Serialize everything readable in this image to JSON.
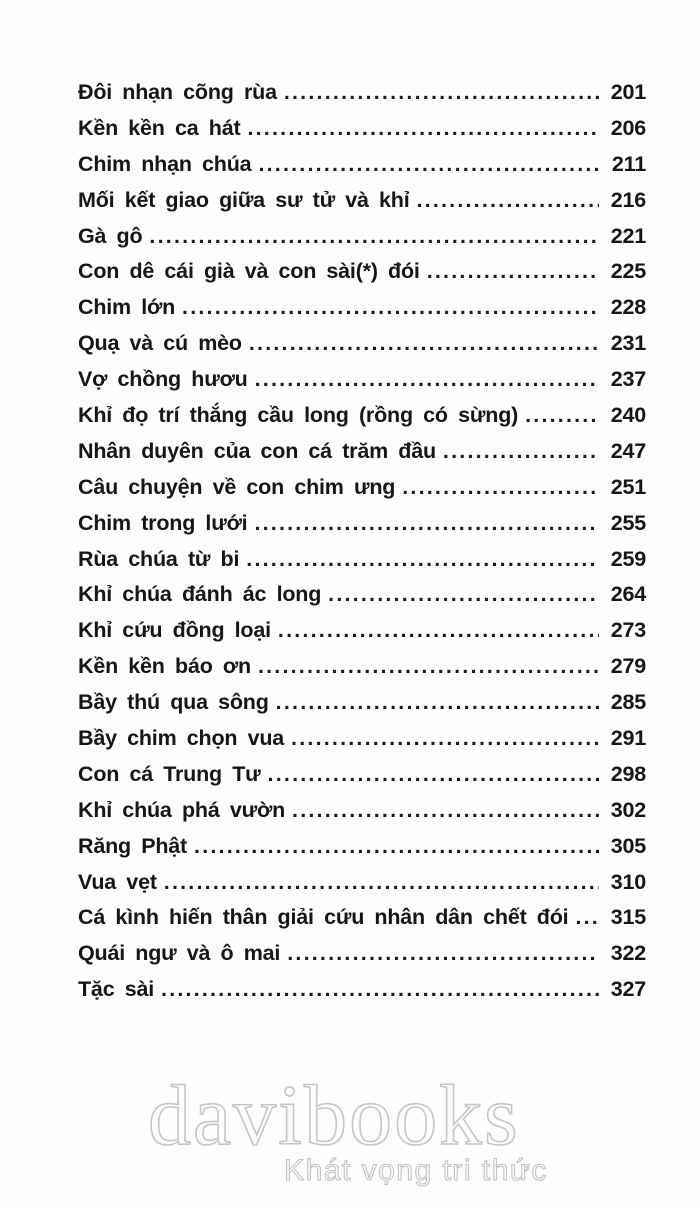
{
  "page": {
    "background": "#fdfdfd",
    "text_color": "#161616"
  },
  "toc": {
    "entries": [
      {
        "title": "Đôi nhạn cõng rùa",
        "page": "201"
      },
      {
        "title": "Kền kền ca hát",
        "page": "206"
      },
      {
        "title": "Chim nhạn chúa",
        "page": "211"
      },
      {
        "title": "Mối kết giao giữa sư tử và khỉ",
        "page": "216"
      },
      {
        "title": "Gà gô",
        "page": "221"
      },
      {
        "title": "Con dê cái già và con sài(*) đói",
        "page": "225"
      },
      {
        "title": "Chim lớn",
        "page": "228"
      },
      {
        "title": "Quạ và cú mèo",
        "page": "231"
      },
      {
        "title": "Vợ chồng hươu",
        "page": "237"
      },
      {
        "title": "Khỉ đọ trí thắng cầu long (rồng có sừng)",
        "page": "240"
      },
      {
        "title": "Nhân duyên của con cá trăm đầu",
        "page": "247"
      },
      {
        "title": "Câu chuyện về con chim ưng",
        "page": "251"
      },
      {
        "title": "Chim trong lưới",
        "page": "255"
      },
      {
        "title": "Rùa chúa từ bi",
        "page": "259"
      },
      {
        "title": "Khỉ chúa đánh ác long",
        "page": "264"
      },
      {
        "title": "Khỉ cứu đồng loại",
        "page": "273"
      },
      {
        "title": "Kền kền báo ơn",
        "page": "279"
      },
      {
        "title": "Bầy thú qua sông",
        "page": "285"
      },
      {
        "title": "Bầy chim chọn vua",
        "page": "291"
      },
      {
        "title": "Con cá Trung Tư",
        "page": "298"
      },
      {
        "title": "Khỉ chúa phá vườn",
        "page": "302"
      },
      {
        "title": "Răng Phật",
        "page": "305"
      },
      {
        "title": "Vua vẹt",
        "page": "310"
      },
      {
        "title": "Cá kình hiến thân giải cứu nhân dân chết đói",
        "page": "315"
      },
      {
        "title": "Quái ngư và ô mai",
        "page": "322"
      },
      {
        "title": "Tặc sài",
        "page": "327"
      }
    ]
  },
  "watermark": {
    "logo_text": "davibooks",
    "tagline": "Khát vọng tri thức",
    "color": "#c6c6c6"
  }
}
